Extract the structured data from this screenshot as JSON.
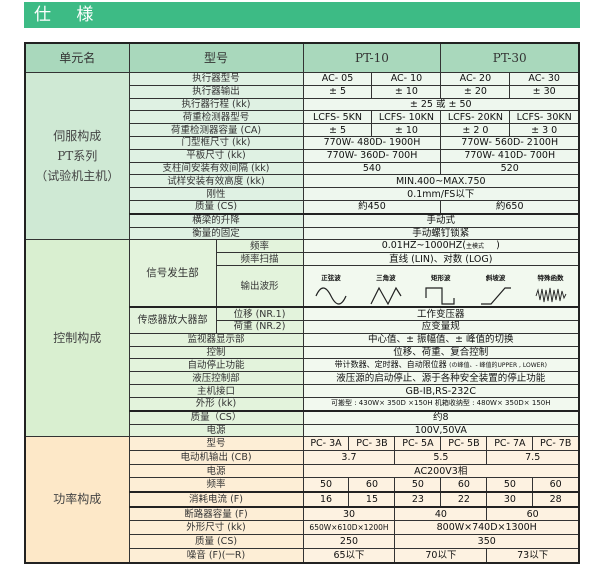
{
  "title": "仕 様",
  "header": {
    "unit": "单元名",
    "model": "型号",
    "pt10": "PT-10",
    "pt30": "PT-30"
  },
  "servo": {
    "unit_lines": [
      "伺服构成",
      "PT系列",
      "（试验机主机）"
    ],
    "r": [
      {
        "l": "执行器型号",
        "v": [
          "AC- 05",
          "AC- 10",
          "AC- 20",
          "AC- 30"
        ]
      },
      {
        "l": "执行器输出",
        "v": [
          "± 5",
          "± 10",
          "± 20",
          "± 30"
        ]
      },
      {
        "l": "执行器行程 (kk)",
        "v": [
          "± 25 或 ± 50"
        ]
      },
      {
        "l": "荷重检测器型号",
        "v": [
          "LCFS- 5KN",
          "LCFS- 10KN",
          "LCFS- 20KN",
          "LCFS- 30KN"
        ]
      },
      {
        "l": "荷重检测器容量 (CA)",
        "v": [
          "± 5",
          "± 10",
          "± 2 0",
          "± 3 0"
        ]
      },
      {
        "l": "门型框尺寸 (kk)",
        "v": [
          "770W- 480D- 1900H",
          "770W- 560D- 2100H"
        ]
      },
      {
        "l": "平板尺寸 (kk)",
        "v": [
          "770W- 360D- 700H",
          "770W- 410D- 700H"
        ]
      },
      {
        "l": "支柱间安装有效间隔 (kk)",
        "v": [
          "540",
          "520"
        ]
      },
      {
        "l": "试样安装有效高度 (kk)",
        "v": [
          "MIN.400~MAX.750"
        ]
      },
      {
        "l": "刚性",
        "v": [
          "0.1mm/FS以下"
        ]
      },
      {
        "l": "质量 (CS)",
        "v": [
          "約450",
          "約650"
        ]
      },
      {
        "l": "横梁的升降",
        "v": [
          "手动式"
        ]
      },
      {
        "l": "衡量的固定",
        "v": [
          "手动螺钉锁紧"
        ]
      }
    ]
  },
  "control": {
    "unit": "控制构成",
    "signal": {
      "label": "信号发生部",
      "freq": {
        "l": "频率",
        "v": "0.01HZ~1000HZ(",
        "note": "主模式",
        "end": ")"
      },
      "sweep": {
        "l": "频率扫描",
        "v": "直线 (LIN)、对数 (LOG)"
      },
      "wave": {
        "l": "输出波形",
        "items": [
          {
            "label": "正弦波",
            "icon": "sine-wave-icon"
          },
          {
            "label": "三角波",
            "icon": "triangle-wave-icon"
          },
          {
            "label": "矩形波",
            "icon": "square-wave-icon"
          },
          {
            "label": "斜坡波",
            "icon": "ramp-wave-icon"
          },
          {
            "label": "特殊函数",
            "icon": "special-function-wave-icon"
          }
        ]
      }
    },
    "sensor": {
      "label": "传感器放大器部",
      "disp": {
        "l": "位移 (NR.1)",
        "v": "工作变压器"
      },
      "load": {
        "l": "荷重 (NR.2)",
        "v": "应变量规"
      }
    },
    "r": [
      {
        "l": "监视器显示部",
        "v": "中心值、± 振幅值、± 峰值的切换"
      },
      {
        "l": "控制",
        "v": "位移、荷重、复合控制"
      },
      {
        "l": "自动停止功能",
        "v": "带计数器、定时器、自动限位器",
        "note": "(の峰值、- 峰值的UPPER , LOWER)"
      },
      {
        "l": "液压控制部",
        "v": "液压源的启动停止、源于各种安全装置的停止功能"
      },
      {
        "l": "主机接口",
        "v": "GB-IB,RS-232C"
      },
      {
        "l": "外形 (kk)",
        "v": "可搬型 : 430W× 350D ×150H  机箱收纳型 : 480W× 350D× 150H"
      },
      {
        "l": "质量（CS）",
        "v": "约8"
      },
      {
        "l": "电源",
        "v": "100V,50VA"
      }
    ]
  },
  "power": {
    "unit": "功率构成",
    "r": [
      {
        "l": "型号",
        "v": [
          "PC- 3A",
          "PC- 3B",
          "PC- 5A",
          "PC- 5B",
          "PC- 7A",
          "PC- 7B"
        ]
      },
      {
        "l": "电动机输出 (CB)",
        "v": [
          "3.7",
          "5.5",
          "7.5"
        ]
      },
      {
        "l": "电源",
        "v": [
          "AC200V3相"
        ]
      },
      {
        "l": "频率",
        "v": [
          "50",
          "60",
          "50",
          "60",
          "50",
          "60"
        ]
      },
      {
        "l": "消耗电流 (F)",
        "v": [
          "16",
          "15",
          "23",
          "22",
          "30",
          "28"
        ]
      },
      {
        "l": "断路器容量 (F)",
        "v": [
          "30",
          "40",
          "60"
        ]
      },
      {
        "l": "外形尺寸 (kk)",
        "v": [
          "650W×610D×1200H",
          "800W×740D×1300H"
        ]
      },
      {
        "l": "质量 (CS)",
        "v": [
          "250",
          "350"
        ]
      },
      {
        "l": "噪音 (F)(一R)",
        "v": [
          "65以下",
          "70以下",
          "73以下"
        ]
      }
    ]
  },
  "colors": {
    "title_bar": "#3dbb85",
    "header": "#a9d8bc",
    "servo": "#eef7ee",
    "control": "#f2f9ef",
    "power": "#fdf2e1"
  }
}
